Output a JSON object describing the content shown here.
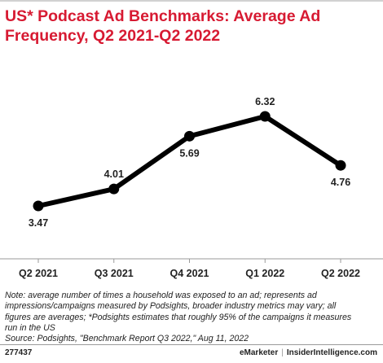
{
  "title": "US* Podcast Ad Benchmarks: Average Ad Frequency, Q2 2021-Q2 2022",
  "colors": {
    "title": "#d71a32",
    "line": "#000000",
    "axis": "#9a9a9a"
  },
  "chart_data": {
    "type": "line",
    "title": "US* Podcast Ad Benchmarks: Average Ad Frequency, Q2 2021-Q2 2022",
    "xlabel": "",
    "ylabel": "",
    "categories": [
      "Q2 2021",
      "Q3 2021",
      "Q4 2021",
      "Q1 2022",
      "Q2 2022"
    ],
    "series": [
      {
        "values": [
          3.47,
          4.01,
          5.69,
          6.32,
          4.76
        ],
        "labels": [
          "3.47",
          "4.01",
          "5.69",
          "6.32",
          "4.76"
        ]
      }
    ],
    "ylim": [
      2.5,
      6.5
    ],
    "grid": false,
    "legend": "none"
  },
  "footnote": {
    "line1": "Note: average number of times a household was exposed to an ad; represents ad",
    "line2": "impressions/campaigns measured by Podsights, broader industry metrics may vary; all",
    "line3": "figures are averages; *Podsights estimates that roughly 95% of the campaigns it measures",
    "line4": "run in the US",
    "source": "Source: Podsights, \"Benchmark Report Q3 2022,\" Aug 11, 2022"
  },
  "footer": {
    "chart_id": "277437",
    "brand1": "eMarketer",
    "separator": "|",
    "brand2": "InsiderIntelligence.com"
  }
}
